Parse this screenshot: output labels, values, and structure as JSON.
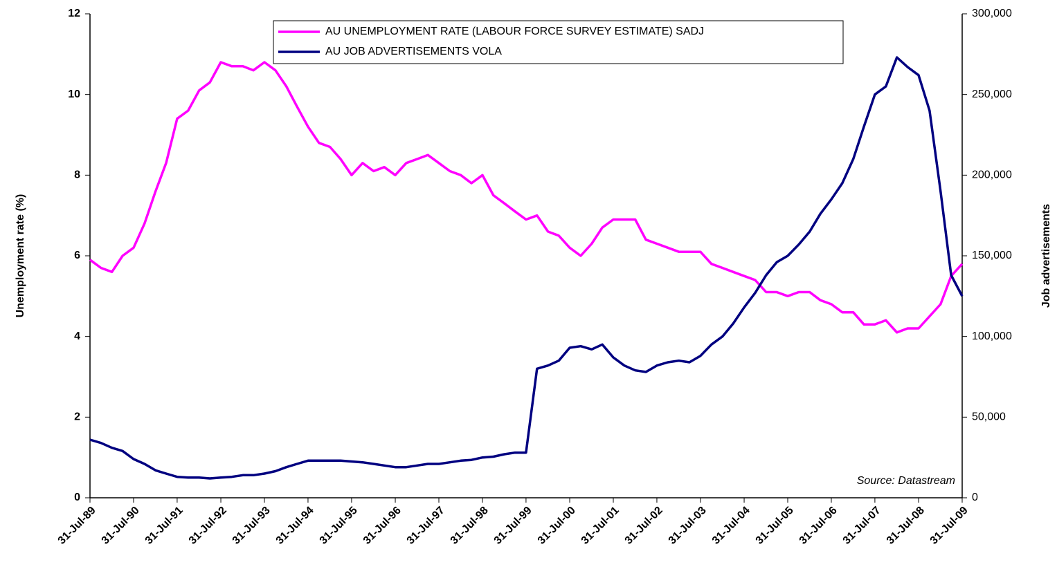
{
  "chart_data": {
    "type": "line",
    "ylabel": "Unemployment rate (%)",
    "y2label": "Job advertisements",
    "annotation": "Source: Datastream",
    "legend": "top",
    "x": [
      "31-Jul-89",
      "31-Oct-89",
      "31-Jan-90",
      "30-Apr-90",
      "31-Jul-90",
      "31-Oct-90",
      "31-Jan-91",
      "30-Apr-91",
      "31-Jul-91",
      "31-Oct-91",
      "31-Jan-92",
      "30-Apr-92",
      "31-Jul-92",
      "31-Oct-92",
      "31-Jan-93",
      "30-Apr-93",
      "31-Jul-93",
      "31-Oct-93",
      "31-Jan-94",
      "30-Apr-94",
      "31-Jul-94",
      "31-Oct-94",
      "31-Jan-95",
      "30-Apr-95",
      "31-Jul-95",
      "31-Oct-95",
      "31-Jan-96",
      "30-Apr-96",
      "31-Jul-96",
      "31-Oct-96",
      "31-Jan-97",
      "30-Apr-97",
      "31-Jul-97",
      "31-Oct-97",
      "31-Jan-98",
      "30-Apr-98",
      "31-Jul-98",
      "31-Oct-98",
      "31-Jan-99",
      "30-Apr-99",
      "31-Jul-99",
      "31-Oct-99",
      "31-Jan-00",
      "30-Apr-00",
      "31-Jul-00",
      "31-Oct-00",
      "31-Jan-01",
      "30-Apr-01",
      "31-Jul-01",
      "31-Oct-01",
      "31-Jan-02",
      "30-Apr-02",
      "31-Jul-02",
      "31-Oct-02",
      "31-Jan-03",
      "30-Apr-03",
      "31-Jul-03",
      "31-Oct-03",
      "31-Jan-04",
      "30-Apr-04",
      "31-Jul-04",
      "31-Oct-04",
      "31-Jan-05",
      "30-Apr-05",
      "31-Jul-05",
      "31-Oct-05",
      "31-Jan-06",
      "30-Apr-06",
      "31-Jul-06",
      "31-Oct-06",
      "31-Jan-07",
      "30-Apr-07",
      "31-Jul-07",
      "31-Oct-07",
      "31-Jan-08",
      "30-Apr-08",
      "31-Jul-08",
      "31-Oct-08",
      "31-Jan-09",
      "30-Apr-09",
      "31-Jul-09"
    ],
    "series": [
      {
        "name": "AU UNEMPLOYMENT RATE (LABOUR FORCE SURVEY ESTIMATE) SADJ",
        "color": "#ff00ff",
        "values": [
          5.9,
          5.7,
          5.6,
          6.0,
          6.2,
          6.8,
          7.6,
          8.3,
          9.4,
          9.6,
          10.1,
          10.3,
          10.8,
          10.7,
          10.7,
          10.6,
          10.8,
          10.6,
          10.2,
          9.7,
          9.2,
          8.8,
          8.7,
          8.4,
          8.0,
          8.3,
          8.1,
          8.2,
          8.0,
          8.3,
          8.4,
          8.5,
          8.3,
          8.1,
          8.0,
          7.8,
          8.0,
          7.5,
          7.3,
          7.1,
          6.9,
          7.0,
          6.6,
          6.5,
          6.2,
          6.0,
          6.3,
          6.7,
          6.9,
          6.9,
          6.9,
          6.4,
          6.3,
          6.2,
          6.1,
          6.1,
          6.1,
          5.8,
          5.7,
          5.6,
          5.5,
          5.4,
          5.1,
          5.1,
          5.0,
          5.1,
          5.1,
          4.9,
          4.8,
          4.6,
          4.6,
          4.3,
          4.3,
          4.4,
          4.1,
          4.2,
          4.2,
          4.5,
          4.8,
          5.5,
          5.8
        ]
      },
      {
        "name": "AU JOB ADVERTISEMENTS VOLA",
        "color": "#000080",
        "axis": "y2",
        "values": [
          36000,
          34000,
          31000,
          29000,
          24000,
          21000,
          17000,
          15000,
          13000,
          12500,
          12500,
          12000,
          12500,
          13000,
          14000,
          14000,
          15000,
          16500,
          19000,
          21000,
          23000,
          23000,
          23000,
          23000,
          22500,
          22000,
          21000,
          20000,
          19000,
          19000,
          20000,
          21000,
          21000,
          22000,
          23000,
          23500,
          25000,
          25500,
          27000,
          28000,
          28000,
          80000,
          82000,
          85000,
          93000,
          94000,
          92000,
          95000,
          87000,
          82000,
          79000,
          78000,
          82000,
          84000,
          85000,
          84000,
          88000,
          95000,
          100000,
          108000,
          118000,
          127000,
          138000,
          146000,
          150000,
          157000,
          165000,
          176000,
          185000,
          195000,
          210000,
          230000,
          250000,
          255000,
          273000,
          267000,
          262000,
          240000,
          190000,
          138000,
          125000
        ]
      }
    ],
    "xlim": [
      "31-Jul-89",
      "31-Jul-09"
    ],
    "xticks": [
      "31-Jul-89",
      "31-Jul-90",
      "31-Jul-91",
      "31-Jul-92",
      "31-Jul-93",
      "31-Jul-94",
      "31-Jul-95",
      "31-Jul-96",
      "31-Jul-97",
      "31-Jul-98",
      "31-Jul-99",
      "31-Jul-00",
      "31-Jul-01",
      "31-Jul-02",
      "31-Jul-03",
      "31-Jul-04",
      "31-Jul-05",
      "31-Jul-06",
      "31-Jul-07",
      "31-Jul-08",
      "31-Jul-09"
    ],
    "ylim": [
      0,
      12
    ],
    "yticks": [
      0,
      2,
      4,
      6,
      8,
      10,
      12
    ],
    "y2lim": [
      0,
      300000
    ],
    "y2ticks": [
      0,
      {
        "value": 50000,
        "label": "50,000"
      },
      {
        "value": 100000,
        "label": "100,000"
      },
      {
        "value": 150000,
        "label": "150,000"
      },
      {
        "value": 200000,
        "label": "200,000"
      },
      {
        "value": 250000,
        "label": "250,000"
      },
      {
        "value": 300000,
        "label": "300,000"
      }
    ],
    "grid": false
  }
}
